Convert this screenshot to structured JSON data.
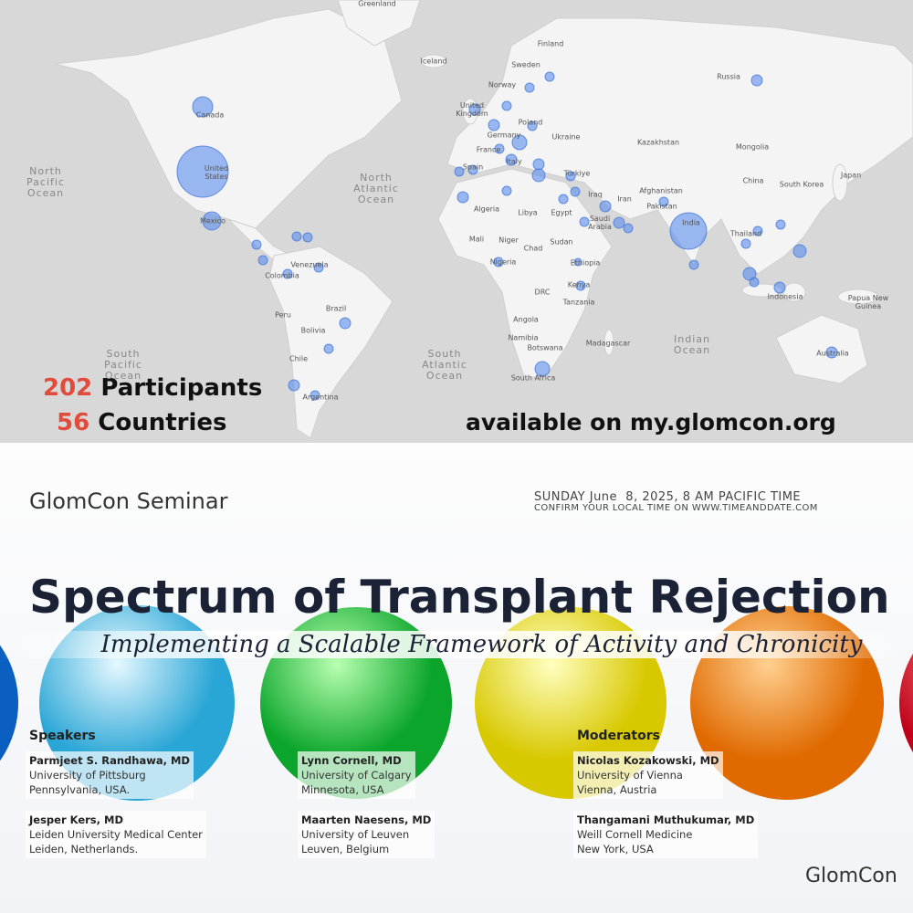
{
  "map": {
    "labels": [
      "Greenland",
      "Finland",
      "Iceland",
      "Sweden",
      "Norway",
      "Russia",
      "Canada",
      "United Kingdom",
      "Poland",
      "Germany",
      "Ukraine",
      "France",
      "Kazakhstan",
      "Mongolia",
      "Italy",
      "Spain",
      "Türkiye",
      "United States",
      "North Pacific Ocean",
      "North Atlantic Ocean",
      "Japan",
      "China",
      "South Korea",
      "Afghanistan",
      "Iran",
      "Iraq",
      "Algeria",
      "Libya",
      "Egypt",
      "Pakistan",
      "Saudi Arabia",
      "India",
      "Mexico",
      "Mali",
      "Niger",
      "Chad",
      "Sudan",
      "Thailand",
      "Venezuela",
      "Colombia",
      "Nigeria",
      "Ethiopia",
      "Kenya",
      "DRC",
      "Tanzania",
      "Peru",
      "Brazil",
      "Bolivia",
      "Angola",
      "Namibia",
      "Botswana",
      "Madagascar",
      "Indian Ocean",
      "Indonesia",
      "Papua New Guinea",
      "Chile",
      "South Pacific Ocean",
      "South Atlantic Ocean",
      "South Africa",
      "Australia",
      "Argentina"
    ],
    "stats": [
      {
        "number": 202,
        "label": "Participants"
      },
      {
        "number": 56,
        "label": "Countries"
      }
    ],
    "availability": "available on my.glomcon.org"
  },
  "header": {
    "series": "GlomCon Seminar",
    "date": "SUNDAY June  8, 2025, 8 AM PACIFIC TIME",
    "confirm": "CONFIRM YOUR LOCAL TIME ON WWW.TIMEANDDATE.COM"
  },
  "title": "Spectrum of Transplant Rejection",
  "subtitle": "Implementing a Scalable Framework of Activity and Chronicity",
  "speakers": {
    "heading": "Speakers",
    "people": [
      {
        "name": "Parmjeet S. Randhawa, MD",
        "affiliation": "University of Pittsburg",
        "location": "Pennsylvania, USA."
      },
      {
        "name": "Jesper Kers, MD",
        "affiliation": "Leiden University Medical Center",
        "location": "Leiden, Netherlands."
      },
      {
        "name": "Lynn Cornell, MD",
        "affiliation": "University of Calgary",
        "location": "Minnesota, USA"
      },
      {
        "name": "Maarten Naesens, MD",
        "affiliation": "University of Leuven",
        "location": "Leuven, Belgium"
      }
    ]
  },
  "moderators": {
    "heading": "Moderators",
    "people": [
      {
        "name": "Nicolas Kozakowski, MD",
        "affiliation": "University of Vienna",
        "location": "Vienna, Austria"
      },
      {
        "name": "Thangamani Muthukumar, MD",
        "affiliation": "Weill Cornell Medicine",
        "location": "New York, USA"
      }
    ]
  },
  "logo": "GlomCon"
}
